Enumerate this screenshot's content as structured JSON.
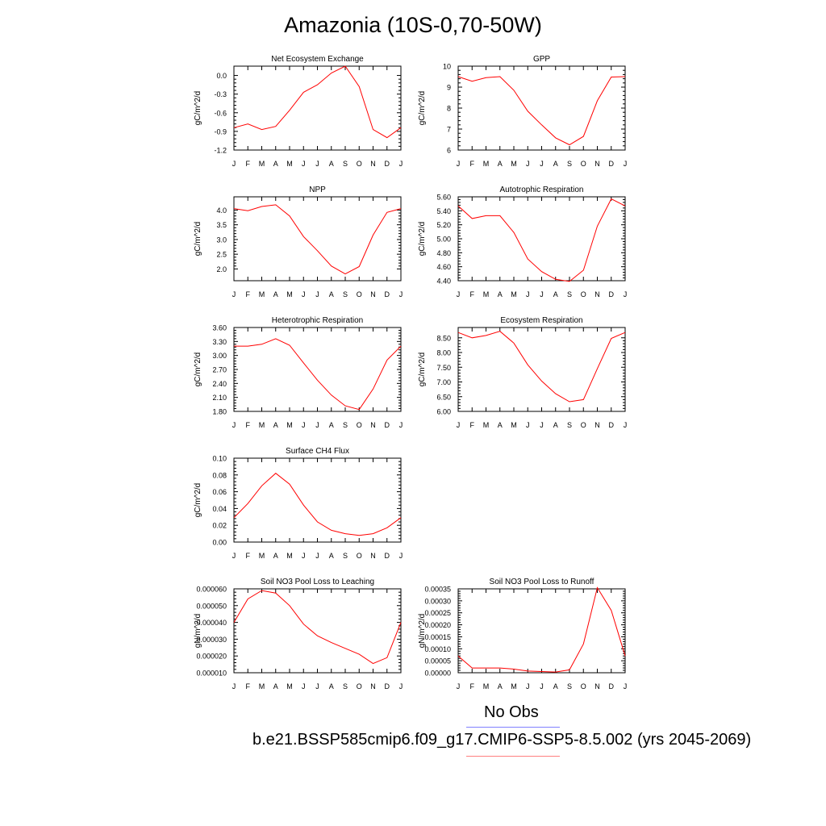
{
  "title": "Amazonia (10S-0,70-50W)",
  "legend": {
    "obs_label": "No Obs",
    "case_label": "b.e21.BSSP585cmip6.f09_g17.CMIP6-SSP5-8.5.002 (yrs 2045-2069)",
    "obs_color": "#8080ff",
    "case_color": "#ff8080"
  },
  "line_color": "#ff0000",
  "chart_data": [
    {
      "type": "line",
      "title": "Net Ecosystem Exchange",
      "ylabel": "gC/m^2/d",
      "x": [
        "J",
        "F",
        "M",
        "A",
        "M",
        "J",
        "J",
        "A",
        "S",
        "O",
        "N",
        "D",
        "J"
      ],
      "ylim": [
        -1.2,
        0.15
      ],
      "yticks": [
        -1.2,
        -0.9,
        -0.6,
        -0.3,
        0.0
      ],
      "ytick_labels": [
        "-1.2",
        "-0.9",
        "-0.6",
        "-0.3",
        "0.0"
      ],
      "series": [
        {
          "values": [
            -0.84,
            -0.78,
            -0.87,
            -0.82,
            -0.56,
            -0.27,
            -0.15,
            0.04,
            0.15,
            -0.18,
            -0.87,
            -1.0,
            -0.84
          ]
        }
      ]
    },
    {
      "type": "line",
      "title": "GPP",
      "ylabel": "gC/m^2/d",
      "x": [
        "J",
        "F",
        "M",
        "A",
        "M",
        "J",
        "J",
        "A",
        "S",
        "O",
        "N",
        "D",
        "J"
      ],
      "ylim": [
        6,
        10
      ],
      "yticks": [
        6,
        7,
        8,
        9,
        10
      ],
      "ytick_labels": [
        "6",
        "7",
        "8",
        "9",
        "10"
      ],
      "series": [
        {
          "values": [
            9.5,
            9.28,
            9.45,
            9.5,
            8.85,
            7.85,
            7.2,
            6.58,
            6.25,
            6.65,
            8.35,
            9.48,
            9.5
          ]
        }
      ]
    },
    {
      "type": "line",
      "title": "NPP",
      "ylabel": "gC/m^2/d",
      "x": [
        "J",
        "F",
        "M",
        "A",
        "M",
        "J",
        "J",
        "A",
        "S",
        "O",
        "N",
        "D",
        "J"
      ],
      "ylim": [
        1.6,
        4.45
      ],
      "yticks": [
        2.0,
        2.5,
        3.0,
        3.5,
        4.0
      ],
      "ytick_labels": [
        "2.0",
        "2.5",
        "3.0",
        "3.5",
        "4.0"
      ],
      "series": [
        {
          "values": [
            4.05,
            3.98,
            4.12,
            4.18,
            3.8,
            3.1,
            2.62,
            2.1,
            1.83,
            2.08,
            3.15,
            3.92,
            4.05
          ]
        }
      ]
    },
    {
      "type": "line",
      "title": "Autotrophic Respiration",
      "ylabel": "gC/m^2/d",
      "x": [
        "J",
        "F",
        "M",
        "A",
        "M",
        "J",
        "J",
        "A",
        "S",
        "O",
        "N",
        "D",
        "J"
      ],
      "ylim": [
        4.4,
        5.6
      ],
      "yticks": [
        4.4,
        4.6,
        4.8,
        5.0,
        5.2,
        5.4,
        5.6
      ],
      "ytick_labels": [
        "4.40",
        "4.60",
        "4.80",
        "5.00",
        "5.20",
        "5.40",
        "5.60"
      ],
      "series": [
        {
          "values": [
            5.47,
            5.29,
            5.33,
            5.33,
            5.09,
            4.71,
            4.53,
            4.42,
            4.39,
            4.55,
            5.18,
            5.57,
            5.47
          ]
        }
      ]
    },
    {
      "type": "line",
      "title": "Heterotrophic Respiration",
      "ylabel": "gC/m^2/d",
      "x": [
        "J",
        "F",
        "M",
        "A",
        "M",
        "J",
        "J",
        "A",
        "S",
        "O",
        "N",
        "D",
        "J"
      ],
      "ylim": [
        1.8,
        3.6
      ],
      "yticks": [
        1.8,
        2.1,
        2.4,
        2.7,
        3.0,
        3.3,
        3.6
      ],
      "ytick_labels": [
        "1.80",
        "2.10",
        "2.40",
        "2.70",
        "3.00",
        "3.30",
        "3.60"
      ],
      "series": [
        {
          "values": [
            3.2,
            3.2,
            3.24,
            3.36,
            3.22,
            2.84,
            2.47,
            2.15,
            1.92,
            1.84,
            2.28,
            2.9,
            3.2
          ]
        }
      ]
    },
    {
      "type": "line",
      "title": "Ecosystem Respiration",
      "ylabel": "gC/m^2/d",
      "x": [
        "J",
        "F",
        "M",
        "A",
        "M",
        "J",
        "J",
        "A",
        "S",
        "O",
        "N",
        "D",
        "J"
      ],
      "ylim": [
        6.0,
        8.85
      ],
      "yticks": [
        6.0,
        6.5,
        7.0,
        7.5,
        8.0,
        8.5
      ],
      "ytick_labels": [
        "6.00",
        "6.50",
        "7.00",
        "7.50",
        "8.00",
        "8.50"
      ],
      "series": [
        {
          "values": [
            8.68,
            8.5,
            8.58,
            8.72,
            8.32,
            7.58,
            7.03,
            6.6,
            6.33,
            6.4,
            7.45,
            8.48,
            8.68
          ]
        }
      ]
    },
    {
      "type": "line",
      "title": "Surface CH4 Flux",
      "ylabel": "gC/m^2/d",
      "x": [
        "J",
        "F",
        "M",
        "A",
        "M",
        "J",
        "J",
        "A",
        "S",
        "O",
        "N",
        "D",
        "J"
      ],
      "ylim": [
        0.0,
        0.1
      ],
      "yticks": [
        0.0,
        0.02,
        0.04,
        0.06,
        0.08,
        0.1
      ],
      "ytick_labels": [
        "0.00",
        "0.02",
        "0.04",
        "0.06",
        "0.08",
        "0.10"
      ],
      "series": [
        {
          "values": [
            0.029,
            0.046,
            0.067,
            0.082,
            0.069,
            0.044,
            0.024,
            0.014,
            0.01,
            0.008,
            0.01,
            0.017,
            0.029
          ]
        }
      ]
    },
    {
      "type": "line",
      "title": "Soil NO3 Pool Loss to Leaching",
      "ylabel": "gN/m^2/d",
      "x": [
        "J",
        "F",
        "M",
        "A",
        "M",
        "J",
        "J",
        "A",
        "S",
        "O",
        "N",
        "D",
        "J"
      ],
      "ylim": [
        1e-05,
        6e-05
      ],
      "yticks": [
        1e-05,
        2e-05,
        3e-05,
        4e-05,
        5e-05,
        6e-05
      ],
      "ytick_labels": [
        "0.000010",
        "0.000020",
        "0.000030",
        "0.000040",
        "0.000050",
        "0.000060"
      ],
      "series": [
        {
          "values": [
            4e-05,
            5.4e-05,
            5.9e-05,
            5.75e-05,
            5e-05,
            3.9e-05,
            3.2e-05,
            2.8e-05,
            2.45e-05,
            2.1e-05,
            1.55e-05,
            1.9e-05,
            4e-05
          ]
        }
      ]
    },
    {
      "type": "line",
      "title": "Soil NO3 Pool Loss to Runoff",
      "ylabel": "gN/m^2/d",
      "x": [
        "J",
        "F",
        "M",
        "A",
        "M",
        "J",
        "J",
        "A",
        "S",
        "O",
        "N",
        "D",
        "J"
      ],
      "ylim": [
        0.0,
        0.00035
      ],
      "yticks": [
        0.0,
        5e-05,
        0.0001,
        0.00015,
        0.0002,
        0.00025,
        0.0003,
        0.00035
      ],
      "ytick_labels": [
        "0.00000",
        "0.00005",
        "0.00010",
        "0.00015",
        "0.00020",
        "0.00025",
        "0.00030",
        "0.00035"
      ],
      "series": [
        {
          "values": [
            7e-05,
            2e-05,
            2e-05,
            2e-05,
            1.5e-05,
            7e-06,
            5e-06,
            3e-06,
            1.2e-05,
            0.00012,
            0.000355,
            0.00026,
            7e-05
          ]
        }
      ]
    }
  ]
}
